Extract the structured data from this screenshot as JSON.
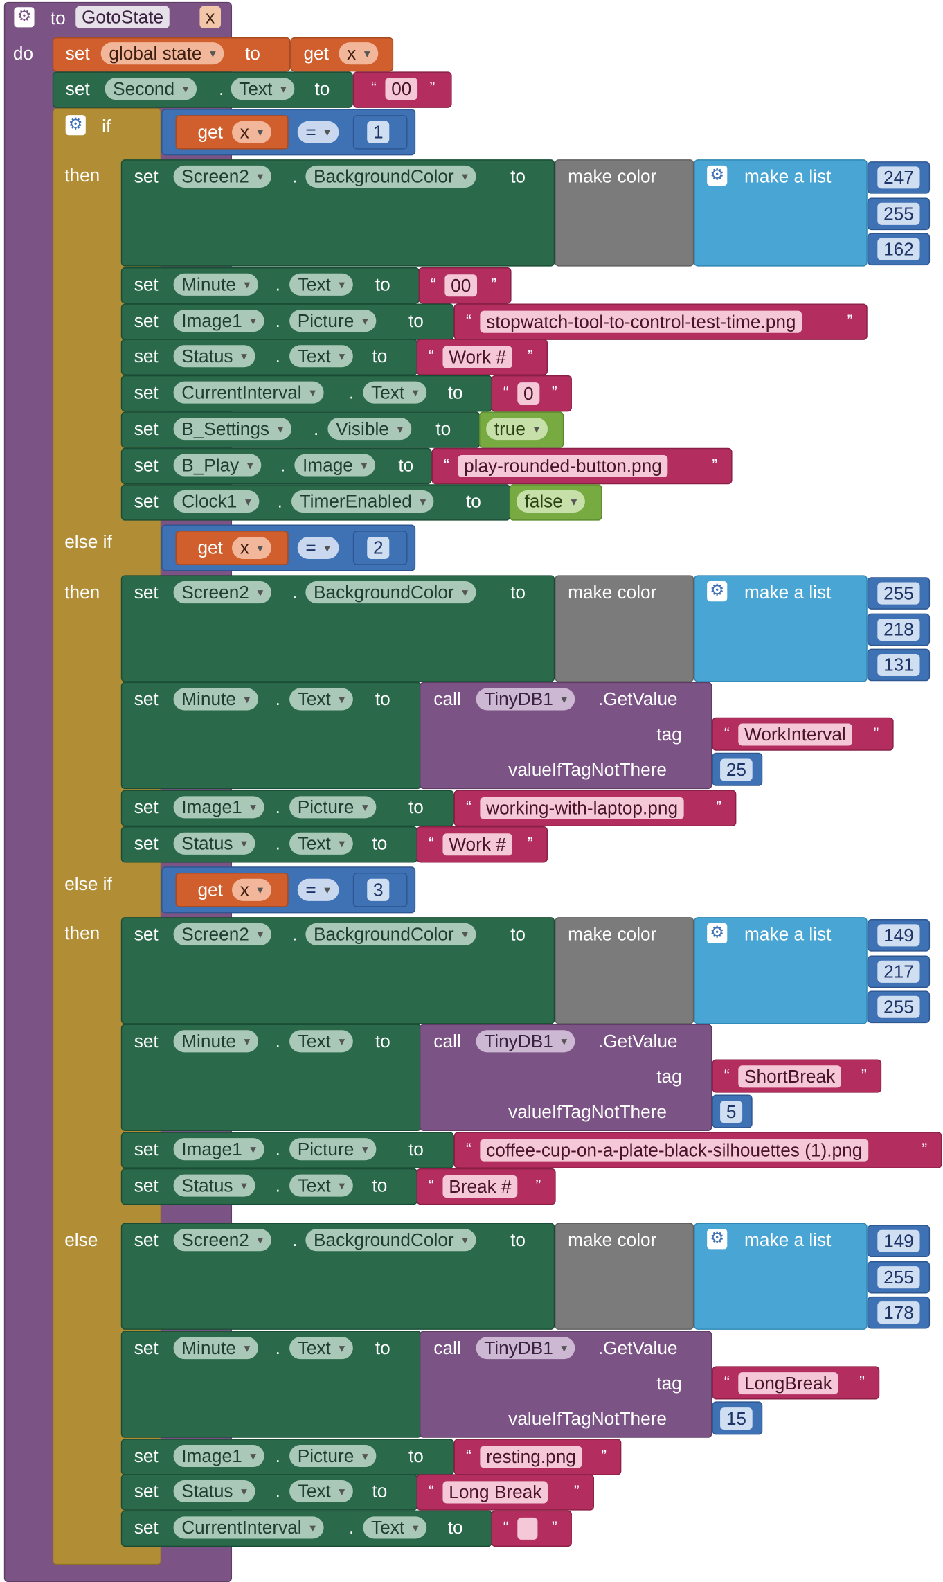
{
  "procedure": {
    "to": "to",
    "name": "GotoState",
    "param": "x",
    "do": "do"
  },
  "kw": {
    "set": "set",
    "to": "to",
    "get": "get",
    "dot": ".",
    "if": "if",
    "then": "then",
    "else_if": "else if",
    "else": "else",
    "make_color": "make color",
    "make_list": "make a list",
    "call": "call",
    "get_value": ".GetValue",
    "tag": "tag",
    "value_if": "valueIfTagNotThere",
    "eq": "=",
    "lq": "“",
    "rq": "”"
  },
  "header": {
    "global_var": "global state",
    "param_ref": "x",
    "second_comp": "Second",
    "second_prop": "Text",
    "second_val": "00"
  },
  "branches": [
    {
      "cond_var": "x",
      "cond_val": "1",
      "color": [
        "247",
        "255",
        "162"
      ],
      "minute_val": "00",
      "image": "stopwatch-tool-to-control-test-time.png",
      "status": "Work #",
      "interval_val": "0",
      "settings_visible": "true",
      "play_image": "play-rounded-button.png",
      "timer_enabled": "false"
    },
    {
      "cond_var": "x",
      "cond_val": "2",
      "color": [
        "255",
        "218",
        "131"
      ],
      "tag": "WorkInterval",
      "default": "25",
      "image": "working-with-laptop.png",
      "status": "Work #"
    },
    {
      "cond_var": "x",
      "cond_val": "3",
      "color": [
        "149",
        "217",
        "255"
      ],
      "tag": "ShortBreak",
      "default": "5",
      "image": "coffee-cup-on-a-plate-black-silhouettes (1).png",
      "status": "Break #"
    },
    {
      "color": [
        "149",
        "255",
        "178"
      ],
      "tag": "LongBreak",
      "default": "15",
      "image": "resting.png",
      "status": "Long Break",
      "interval_val": ""
    }
  ],
  "components": {
    "screen": "Screen2",
    "bgcolor": "BackgroundColor",
    "minute": "Minute",
    "text": "Text",
    "image1": "Image1",
    "picture": "Picture",
    "status": "Status",
    "interval": "CurrentInterval",
    "settings": "B_Settings",
    "visible": "Visible",
    "play": "B_Play",
    "image": "Image",
    "clock": "Clock1",
    "timer": "TimerEnabled",
    "tinydb": "TinyDB1"
  }
}
